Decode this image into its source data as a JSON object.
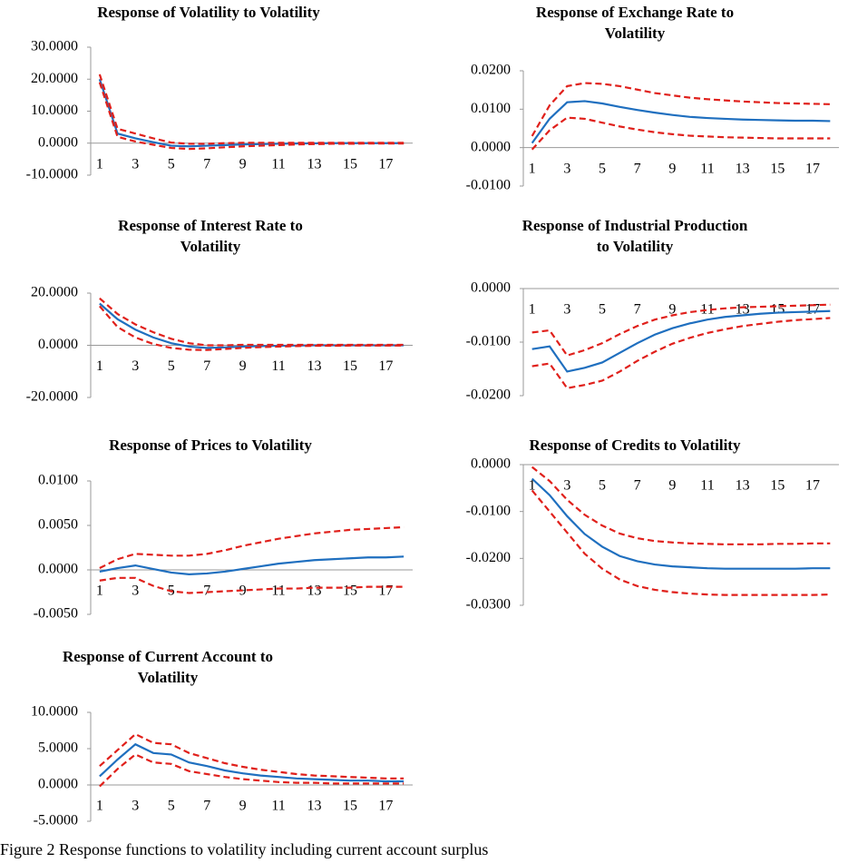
{
  "chart_data": [
    {
      "type": "line",
      "title": [
        "Response of  Volatility to Volatility"
      ],
      "categories": [
        1,
        null,
        3,
        null,
        5,
        null,
        7,
        null,
        9,
        null,
        11,
        null,
        13,
        null,
        15,
        null,
        17,
        null
      ],
      "ylim": [
        -10,
        30
      ],
      "yticks": [
        {
          "value": 30,
          "label": "30.0000"
        },
        {
          "value": 20,
          "label": "20.0000"
        },
        {
          "value": 10,
          "label": "10.0000"
        },
        {
          "value": 0,
          "label": "0.0000"
        },
        {
          "value": -10,
          "label": "-10.0000"
        }
      ],
      "series": [
        {
          "color": "#1f6fbf",
          "dashed": false,
          "values": [
            20,
            3,
            1.5,
            0.3,
            -0.8,
            -1,
            -0.8,
            -0.6,
            -0.4,
            -0.3,
            -0.2,
            -0.1,
            -0.05,
            0,
            0,
            0,
            0,
            0
          ]
        },
        {
          "color": "#e0201b",
          "dashed": true,
          "values": [
            19,
            2,
            0.5,
            -0.5,
            -1.5,
            -1.8,
            -1.6,
            -1.3,
            -1,
            -0.8,
            -0.6,
            -0.4,
            -0.3,
            -0.2,
            -0.2,
            -0.1,
            -0.1,
            -0.1
          ]
        },
        {
          "color": "#e0201b",
          "dashed": true,
          "values": [
            21.5,
            4.5,
            3,
            1.5,
            0.2,
            -0.2,
            -0.2,
            0,
            0.1,
            0.1,
            0.1,
            0.1,
            0.1,
            0.1,
            0.1,
            0.1,
            0.1,
            0.1
          ]
        }
      ]
    },
    {
      "type": "line",
      "title": [
        "Response of  Exchange Rate  to",
        "Volatility"
      ],
      "categories": [
        1,
        null,
        3,
        null,
        5,
        null,
        7,
        null,
        9,
        null,
        11,
        null,
        13,
        null,
        15,
        null,
        17,
        null
      ],
      "ylim": [
        -0.01,
        0.02
      ],
      "yticks": [
        {
          "value": 0.02,
          "label": "0.0200"
        },
        {
          "value": 0.01,
          "label": "0.0100"
        },
        {
          "value": 0,
          "label": "0.0000"
        },
        {
          "value": -0.01,
          "label": "-0.0100"
        }
      ],
      "series": [
        {
          "color": "#1f6fbf",
          "dashed": false,
          "values": [
            0.0012,
            0.0075,
            0.0118,
            0.0121,
            0.0115,
            0.0106,
            0.0098,
            0.0091,
            0.0085,
            0.008,
            0.0077,
            0.0075,
            0.0073,
            0.0072,
            0.0071,
            0.007,
            0.007,
            0.0069
          ]
        },
        {
          "color": "#e0201b",
          "dashed": true,
          "values": [
            -0.0005,
            0.0045,
            0.0078,
            0.0075,
            0.0065,
            0.0055,
            0.0047,
            0.004,
            0.0035,
            0.0031,
            0.0029,
            0.0027,
            0.0026,
            0.0025,
            0.0024,
            0.0024,
            0.0024,
            0.0024
          ]
        },
        {
          "color": "#e0201b",
          "dashed": true,
          "values": [
            0.003,
            0.011,
            0.016,
            0.0168,
            0.0166,
            0.016,
            0.0151,
            0.0142,
            0.0136,
            0.013,
            0.0126,
            0.0123,
            0.012,
            0.0118,
            0.0116,
            0.0115,
            0.0114,
            0.0113
          ]
        }
      ]
    },
    {
      "type": "line",
      "title": [
        "Response of  Interest Rate to",
        "Volatility"
      ],
      "categories": [
        1,
        null,
        3,
        null,
        5,
        null,
        7,
        null,
        9,
        null,
        11,
        null,
        13,
        null,
        15,
        null,
        17,
        null
      ],
      "ylim": [
        -20,
        20
      ],
      "yticks": [
        {
          "value": 20,
          "label": "20.0000"
        },
        {
          "value": 0,
          "label": "0.0000"
        },
        {
          "value": -20,
          "label": "-20.0000"
        }
      ],
      "series": [
        {
          "color": "#1f6fbf",
          "dashed": false,
          "values": [
            16,
            10,
            6,
            3,
            0.8,
            -0.5,
            -1,
            -0.8,
            -0.5,
            -0.3,
            -0.2,
            -0.1,
            0,
            0,
            0,
            0,
            0,
            0
          ]
        },
        {
          "color": "#e0201b",
          "dashed": true,
          "values": [
            15,
            7,
            3,
            0.5,
            -1,
            -1.7,
            -1.8,
            -1.4,
            -1,
            -0.7,
            -0.5,
            -0.3,
            -0.2,
            -0.2,
            -0.1,
            -0.1,
            -0.1,
            -0.1
          ]
        },
        {
          "color": "#e0201b",
          "dashed": true,
          "values": [
            18,
            12,
            8,
            5,
            2.5,
            0.8,
            0,
            0,
            0.2,
            0.2,
            0.2,
            0.2,
            0.2,
            0.2,
            0.2,
            0.2,
            0.2,
            0.2
          ]
        }
      ]
    },
    {
      "type": "line",
      "title": [
        "Response of  Industrial Production",
        "to Volatility"
      ],
      "categories": [
        1,
        null,
        3,
        null,
        5,
        null,
        7,
        null,
        9,
        null,
        11,
        null,
        13,
        null,
        15,
        null,
        17,
        null
      ],
      "ylim": [
        -0.02,
        0
      ],
      "yticks": [
        {
          "value": 0,
          "label": "0.0000"
        },
        {
          "value": -0.01,
          "label": "-0.0100"
        },
        {
          "value": -0.02,
          "label": "-0.0200"
        }
      ],
      "series": [
        {
          "color": "#1f6fbf",
          "dashed": false,
          "values": [
            -0.0113,
            -0.0108,
            -0.0155,
            -0.0148,
            -0.0138,
            -0.012,
            -0.0102,
            -0.0086,
            -0.0074,
            -0.0065,
            -0.0058,
            -0.0053,
            -0.005,
            -0.0047,
            -0.0045,
            -0.0044,
            -0.0043,
            -0.0042
          ]
        },
        {
          "color": "#e0201b",
          "dashed": true,
          "values": [
            -0.0082,
            -0.0078,
            -0.0125,
            -0.0115,
            -0.0102,
            -0.0085,
            -0.007,
            -0.0058,
            -0.005,
            -0.0044,
            -0.004,
            -0.0037,
            -0.0035,
            -0.0034,
            -0.0033,
            -0.0032,
            -0.0031,
            -0.003
          ]
        },
        {
          "color": "#e0201b",
          "dashed": true,
          "values": [
            -0.0145,
            -0.014,
            -0.0186,
            -0.018,
            -0.0172,
            -0.0155,
            -0.0135,
            -0.0118,
            -0.0103,
            -0.0092,
            -0.0083,
            -0.0076,
            -0.007,
            -0.0066,
            -0.0062,
            -0.0059,
            -0.0057,
            -0.0055
          ]
        }
      ]
    },
    {
      "type": "line",
      "title": [
        "Response of  Prices to Volatility"
      ],
      "categories": [
        1,
        null,
        3,
        null,
        5,
        null,
        7,
        null,
        9,
        null,
        11,
        null,
        13,
        null,
        15,
        null,
        17,
        null
      ],
      "ylim": [
        -0.005,
        0.01
      ],
      "yticks": [
        {
          "value": 0.01,
          "label": "0.0100"
        },
        {
          "value": 0.005,
          "label": "0.0050"
        },
        {
          "value": 0,
          "label": "0.0000"
        },
        {
          "value": -0.005,
          "label": "-0.0050"
        }
      ],
      "series": [
        {
          "color": "#1f6fbf",
          "dashed": false,
          "values": [
            -0.0002,
            0.0002,
            0.0005,
            0.0001,
            -0.0003,
            -0.0005,
            -0.0004,
            -0.0002,
            0.0001,
            0.0004,
            0.0007,
            0.0009,
            0.0011,
            0.0012,
            0.0013,
            0.0014,
            0.0014,
            0.0015
          ]
        },
        {
          "color": "#e0201b",
          "dashed": true,
          "values": [
            0.0002,
            0.0012,
            0.0018,
            0.0017,
            0.0016,
            0.0016,
            0.0018,
            0.0022,
            0.0027,
            0.0031,
            0.0035,
            0.0038,
            0.0041,
            0.0043,
            0.0045,
            0.0046,
            0.0047,
            0.0048
          ]
        },
        {
          "color": "#e0201b",
          "dashed": true,
          "values": [
            -0.0012,
            -0.0009,
            -0.0009,
            -0.0018,
            -0.0024,
            -0.0026,
            -0.0025,
            -0.0024,
            -0.0023,
            -0.0022,
            -0.0021,
            -0.0021,
            -0.002,
            -0.002,
            -0.002,
            -0.0019,
            -0.0019,
            -0.0019
          ]
        }
      ]
    },
    {
      "type": "line",
      "title": [
        "Response of  Credits to Volatility"
      ],
      "categories": [
        1,
        null,
        3,
        null,
        5,
        null,
        7,
        null,
        9,
        null,
        11,
        null,
        13,
        null,
        15,
        null,
        17,
        null
      ],
      "ylim": [
        -0.03,
        0
      ],
      "yticks": [
        {
          "value": 0,
          "label": "0.0000"
        },
        {
          "value": -0.01,
          "label": "-0.0100"
        },
        {
          "value": -0.02,
          "label": "-0.0200"
        },
        {
          "value": -0.03,
          "label": "-0.0300"
        }
      ],
      "series": [
        {
          "color": "#1f6fbf",
          "dashed": false,
          "values": [
            -0.003,
            -0.0065,
            -0.011,
            -0.0148,
            -0.0175,
            -0.0195,
            -0.0206,
            -0.0213,
            -0.0217,
            -0.0219,
            -0.0221,
            -0.0222,
            -0.0222,
            -0.0222,
            -0.0222,
            -0.0222,
            -0.0221,
            -0.0221
          ]
        },
        {
          "color": "#e0201b",
          "dashed": true,
          "values": [
            -0.0005,
            -0.0035,
            -0.0075,
            -0.0107,
            -0.013,
            -0.0147,
            -0.0157,
            -0.0163,
            -0.0166,
            -0.0168,
            -0.0169,
            -0.017,
            -0.017,
            -0.017,
            -0.0169,
            -0.0169,
            -0.0168,
            -0.0168
          ]
        },
        {
          "color": "#e0201b",
          "dashed": true,
          "values": [
            -0.0055,
            -0.01,
            -0.0145,
            -0.019,
            -0.0222,
            -0.0245,
            -0.0259,
            -0.0267,
            -0.0272,
            -0.0275,
            -0.0277,
            -0.0278,
            -0.0278,
            -0.0278,
            -0.0278,
            -0.0278,
            -0.0278,
            -0.0277
          ]
        }
      ]
    },
    {
      "type": "line",
      "title": [
        "Response of  Current Account to",
        "Volatility"
      ],
      "categories": [
        1,
        null,
        3,
        null,
        5,
        null,
        7,
        null,
        9,
        null,
        11,
        null,
        13,
        null,
        15,
        null,
        17,
        null
      ],
      "ylim": [
        -5,
        10
      ],
      "yticks": [
        {
          "value": 10,
          "label": "10.0000"
        },
        {
          "value": 5,
          "label": "5.0000"
        },
        {
          "value": 0,
          "label": "0.0000"
        },
        {
          "value": -5,
          "label": "-5.0000"
        }
      ],
      "series": [
        {
          "color": "#1f6fbf",
          "dashed": false,
          "values": [
            1.2,
            3.5,
            5.6,
            4.4,
            4.2,
            3.1,
            2.6,
            2,
            1.6,
            1.3,
            1.1,
            0.9,
            0.8,
            0.7,
            0.6,
            0.6,
            0.5,
            0.5
          ]
        },
        {
          "color": "#e0201b",
          "dashed": true,
          "values": [
            2.6,
            4.8,
            7,
            5.8,
            5.6,
            4.4,
            3.7,
            3,
            2.5,
            2.1,
            1.8,
            1.5,
            1.3,
            1.2,
            1.1,
            1,
            0.9,
            0.9
          ]
        },
        {
          "color": "#e0201b",
          "dashed": true,
          "values": [
            -0.2,
            2.2,
            4.2,
            3.1,
            2.9,
            1.9,
            1.5,
            1.1,
            0.8,
            0.6,
            0.4,
            0.3,
            0.3,
            0.2,
            0.2,
            0.2,
            0.2,
            0.2
          ]
        }
      ]
    }
  ],
  "caption": "Figure 2    Response functions to volatility including current account surplus"
}
